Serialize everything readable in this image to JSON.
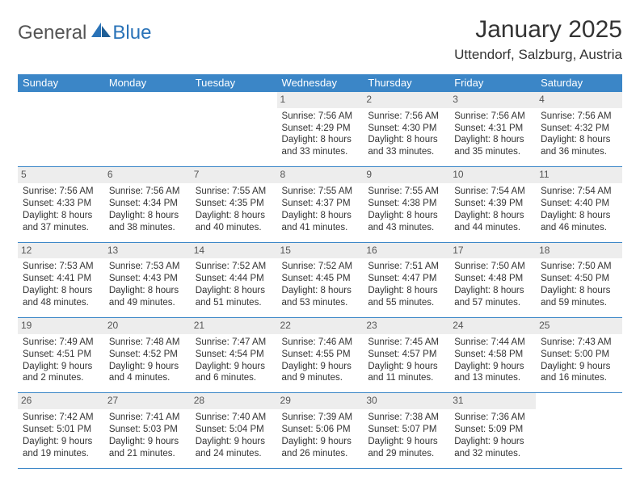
{
  "brand": {
    "part1": "General",
    "part2": "Blue"
  },
  "title": "January 2025",
  "location": "Uttendorf, Salzburg, Austria",
  "accent_color": "#3b86c7",
  "daybar_color": "#ededed",
  "day_headers": [
    "Sunday",
    "Monday",
    "Tuesday",
    "Wednesday",
    "Thursday",
    "Friday",
    "Saturday"
  ],
  "weeks": [
    [
      {
        "n": "",
        "lines": [
          "",
          "",
          "",
          ""
        ],
        "empty": true
      },
      {
        "n": "",
        "lines": [
          "",
          "",
          "",
          ""
        ],
        "empty": true
      },
      {
        "n": "",
        "lines": [
          "",
          "",
          "",
          ""
        ],
        "empty": true
      },
      {
        "n": "1",
        "lines": [
          "Sunrise: 7:56 AM",
          "Sunset: 4:29 PM",
          "Daylight: 8 hours",
          "and 33 minutes."
        ]
      },
      {
        "n": "2",
        "lines": [
          "Sunrise: 7:56 AM",
          "Sunset: 4:30 PM",
          "Daylight: 8 hours",
          "and 33 minutes."
        ]
      },
      {
        "n": "3",
        "lines": [
          "Sunrise: 7:56 AM",
          "Sunset: 4:31 PM",
          "Daylight: 8 hours",
          "and 35 minutes."
        ]
      },
      {
        "n": "4",
        "lines": [
          "Sunrise: 7:56 AM",
          "Sunset: 4:32 PM",
          "Daylight: 8 hours",
          "and 36 minutes."
        ]
      }
    ],
    [
      {
        "n": "5",
        "lines": [
          "Sunrise: 7:56 AM",
          "Sunset: 4:33 PM",
          "Daylight: 8 hours",
          "and 37 minutes."
        ]
      },
      {
        "n": "6",
        "lines": [
          "Sunrise: 7:56 AM",
          "Sunset: 4:34 PM",
          "Daylight: 8 hours",
          "and 38 minutes."
        ]
      },
      {
        "n": "7",
        "lines": [
          "Sunrise: 7:55 AM",
          "Sunset: 4:35 PM",
          "Daylight: 8 hours",
          "and 40 minutes."
        ]
      },
      {
        "n": "8",
        "lines": [
          "Sunrise: 7:55 AM",
          "Sunset: 4:37 PM",
          "Daylight: 8 hours",
          "and 41 minutes."
        ]
      },
      {
        "n": "9",
        "lines": [
          "Sunrise: 7:55 AM",
          "Sunset: 4:38 PM",
          "Daylight: 8 hours",
          "and 43 minutes."
        ]
      },
      {
        "n": "10",
        "lines": [
          "Sunrise: 7:54 AM",
          "Sunset: 4:39 PM",
          "Daylight: 8 hours",
          "and 44 minutes."
        ]
      },
      {
        "n": "11",
        "lines": [
          "Sunrise: 7:54 AM",
          "Sunset: 4:40 PM",
          "Daylight: 8 hours",
          "and 46 minutes."
        ]
      }
    ],
    [
      {
        "n": "12",
        "lines": [
          "Sunrise: 7:53 AM",
          "Sunset: 4:41 PM",
          "Daylight: 8 hours",
          "and 48 minutes."
        ]
      },
      {
        "n": "13",
        "lines": [
          "Sunrise: 7:53 AM",
          "Sunset: 4:43 PM",
          "Daylight: 8 hours",
          "and 49 minutes."
        ]
      },
      {
        "n": "14",
        "lines": [
          "Sunrise: 7:52 AM",
          "Sunset: 4:44 PM",
          "Daylight: 8 hours",
          "and 51 minutes."
        ]
      },
      {
        "n": "15",
        "lines": [
          "Sunrise: 7:52 AM",
          "Sunset: 4:45 PM",
          "Daylight: 8 hours",
          "and 53 minutes."
        ]
      },
      {
        "n": "16",
        "lines": [
          "Sunrise: 7:51 AM",
          "Sunset: 4:47 PM",
          "Daylight: 8 hours",
          "and 55 minutes."
        ]
      },
      {
        "n": "17",
        "lines": [
          "Sunrise: 7:50 AM",
          "Sunset: 4:48 PM",
          "Daylight: 8 hours",
          "and 57 minutes."
        ]
      },
      {
        "n": "18",
        "lines": [
          "Sunrise: 7:50 AM",
          "Sunset: 4:50 PM",
          "Daylight: 8 hours",
          "and 59 minutes."
        ]
      }
    ],
    [
      {
        "n": "19",
        "lines": [
          "Sunrise: 7:49 AM",
          "Sunset: 4:51 PM",
          "Daylight: 9 hours",
          "and 2 minutes."
        ]
      },
      {
        "n": "20",
        "lines": [
          "Sunrise: 7:48 AM",
          "Sunset: 4:52 PM",
          "Daylight: 9 hours",
          "and 4 minutes."
        ]
      },
      {
        "n": "21",
        "lines": [
          "Sunrise: 7:47 AM",
          "Sunset: 4:54 PM",
          "Daylight: 9 hours",
          "and 6 minutes."
        ]
      },
      {
        "n": "22",
        "lines": [
          "Sunrise: 7:46 AM",
          "Sunset: 4:55 PM",
          "Daylight: 9 hours",
          "and 9 minutes."
        ]
      },
      {
        "n": "23",
        "lines": [
          "Sunrise: 7:45 AM",
          "Sunset: 4:57 PM",
          "Daylight: 9 hours",
          "and 11 minutes."
        ]
      },
      {
        "n": "24",
        "lines": [
          "Sunrise: 7:44 AM",
          "Sunset: 4:58 PM",
          "Daylight: 9 hours",
          "and 13 minutes."
        ]
      },
      {
        "n": "25",
        "lines": [
          "Sunrise: 7:43 AM",
          "Sunset: 5:00 PM",
          "Daylight: 9 hours",
          "and 16 minutes."
        ]
      }
    ],
    [
      {
        "n": "26",
        "lines": [
          "Sunrise: 7:42 AM",
          "Sunset: 5:01 PM",
          "Daylight: 9 hours",
          "and 19 minutes."
        ]
      },
      {
        "n": "27",
        "lines": [
          "Sunrise: 7:41 AM",
          "Sunset: 5:03 PM",
          "Daylight: 9 hours",
          "and 21 minutes."
        ]
      },
      {
        "n": "28",
        "lines": [
          "Sunrise: 7:40 AM",
          "Sunset: 5:04 PM",
          "Daylight: 9 hours",
          "and 24 minutes."
        ]
      },
      {
        "n": "29",
        "lines": [
          "Sunrise: 7:39 AM",
          "Sunset: 5:06 PM",
          "Daylight: 9 hours",
          "and 26 minutes."
        ]
      },
      {
        "n": "30",
        "lines": [
          "Sunrise: 7:38 AM",
          "Sunset: 5:07 PM",
          "Daylight: 9 hours",
          "and 29 minutes."
        ]
      },
      {
        "n": "31",
        "lines": [
          "Sunrise: 7:36 AM",
          "Sunset: 5:09 PM",
          "Daylight: 9 hours",
          "and 32 minutes."
        ]
      },
      {
        "n": "",
        "lines": [
          "",
          "",
          "",
          ""
        ],
        "empty": true
      }
    ]
  ]
}
